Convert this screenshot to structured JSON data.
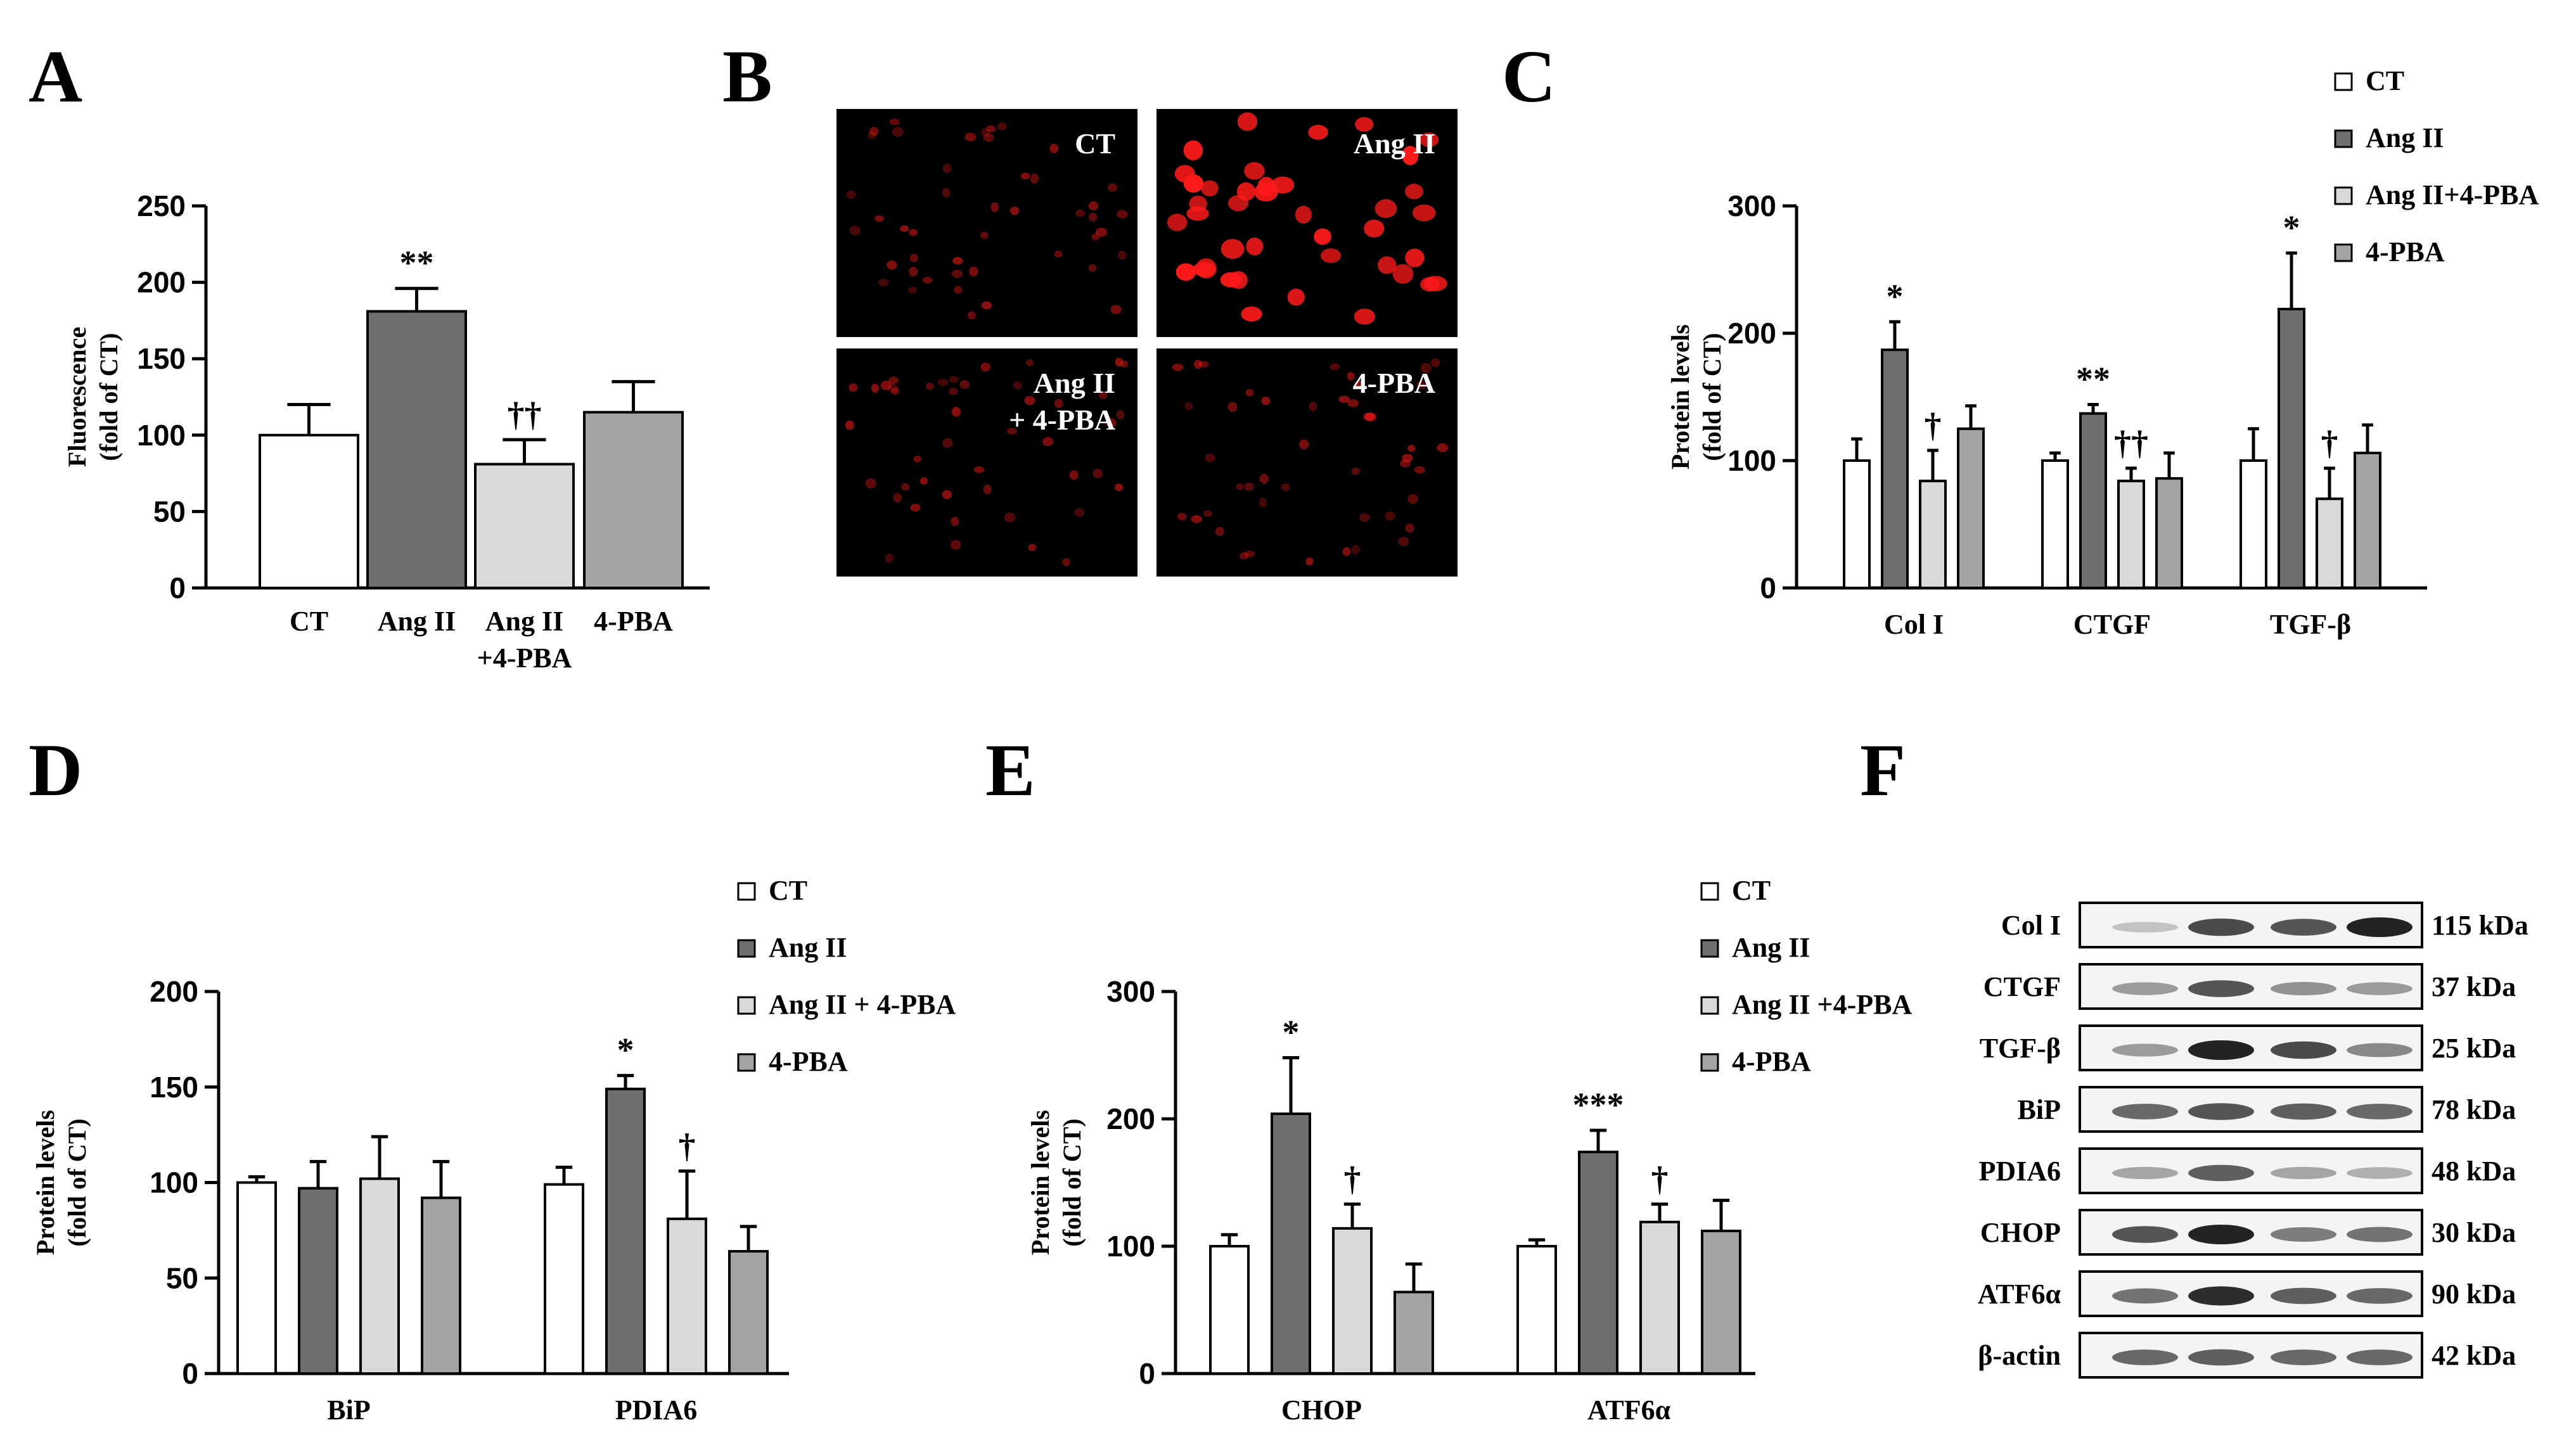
{
  "colors": {
    "ct": "#ffffff",
    "angii": "#6e6e6e",
    "angii_pba": "#d9d9d9",
    "pba": "#a3a3a3",
    "stroke": "#000000",
    "micro_bg": "#000000",
    "micro_cell": "#ff1a1a"
  },
  "panel_letters": [
    "A",
    "B",
    "C",
    "D",
    "E",
    "F"
  ],
  "chart_data": [
    {
      "id": "A",
      "type": "bar",
      "title": "",
      "ylabel": [
        "Fluorescence",
        "(fold of CT)"
      ],
      "xlabel": "",
      "ylim": [
        0,
        250
      ],
      "yticks": [
        0,
        50,
        100,
        150,
        200,
        250
      ],
      "categories": [
        [
          "CT"
        ],
        [
          "Ang II"
        ],
        [
          "Ang II",
          "+4-PBA"
        ],
        [
          "4-PBA"
        ]
      ],
      "values": [
        100,
        181,
        81,
        115
      ],
      "errors": [
        20,
        15,
        16,
        20
      ],
      "fills": [
        "ct",
        "angii",
        "angii_pba",
        "pba"
      ],
      "annotations": [
        "",
        "**",
        "††",
        ""
      ]
    },
    {
      "id": "C",
      "type": "bar",
      "ylabel": [
        "Protein levels",
        "(fold of CT)"
      ],
      "ylim": [
        0,
        300
      ],
      "yticks": [
        0,
        100,
        200,
        300
      ],
      "groups": [
        "Col I",
        "CTGF",
        "TGF-β"
      ],
      "legend": [
        "CT",
        "Ang II",
        "Ang II+4-PBA",
        "4-PBA"
      ],
      "series": [
        {
          "name": "CT",
          "values": [
            100,
            100,
            100
          ],
          "errors": [
            17,
            6,
            25
          ],
          "annotations": [
            "",
            "",
            ""
          ]
        },
        {
          "name": "Ang II",
          "values": [
            187,
            137,
            219
          ],
          "errors": [
            22,
            7,
            44
          ],
          "annotations": [
            "*",
            "**",
            "*"
          ]
        },
        {
          "name": "Ang II+4-PBA",
          "values": [
            84,
            84,
            70
          ],
          "errors": [
            24,
            10,
            24
          ],
          "annotations": [
            "†",
            "††",
            "†"
          ]
        },
        {
          "name": "4-PBA",
          "values": [
            125,
            86,
            106
          ],
          "errors": [
            18,
            20,
            22
          ],
          "annotations": [
            "",
            "",
            ""
          ]
        }
      ]
    },
    {
      "id": "D",
      "type": "bar",
      "ylabel": [
        "Protein levels",
        "(fold of CT)"
      ],
      "ylim": [
        0,
        200
      ],
      "yticks": [
        0,
        50,
        100,
        150,
        200
      ],
      "groups": [
        "BiP",
        "PDIA6"
      ],
      "legend": [
        "CT",
        "Ang II",
        "Ang II + 4-PBA",
        "4-PBA"
      ],
      "series": [
        {
          "name": "CT",
          "values": [
            100,
            99
          ],
          "errors": [
            3,
            9
          ],
          "annotations": [
            "",
            ""
          ]
        },
        {
          "name": "Ang II",
          "values": [
            97,
            149
          ],
          "errors": [
            14,
            7
          ],
          "annotations": [
            "",
            "*"
          ]
        },
        {
          "name": "Ang II + 4-PBA",
          "values": [
            102,
            81
          ],
          "errors": [
            22,
            25
          ],
          "annotations": [
            "",
            "†"
          ]
        },
        {
          "name": "4-PBA",
          "values": [
            92,
            64
          ],
          "errors": [
            19,
            13
          ],
          "annotations": [
            "",
            ""
          ]
        }
      ]
    },
    {
      "id": "E",
      "type": "bar",
      "ylabel": [
        "Protein levels",
        "(fold of CT)"
      ],
      "ylim": [
        0,
        300
      ],
      "yticks": [
        0,
        100,
        200,
        300
      ],
      "groups": [
        "CHOP",
        "ATF6α"
      ],
      "legend": [
        "CT",
        "Ang II",
        "Ang II +4-PBA",
        "4-PBA"
      ],
      "series": [
        {
          "name": "CT",
          "values": [
            100,
            100
          ],
          "errors": [
            9,
            5
          ],
          "annotations": [
            "",
            ""
          ]
        },
        {
          "name": "Ang II",
          "values": [
            204,
            174
          ],
          "errors": [
            44,
            17
          ],
          "annotations": [
            "*",
            "***"
          ]
        },
        {
          "name": "Ang II +4-PBA",
          "values": [
            114,
            119
          ],
          "errors": [
            19,
            14
          ],
          "annotations": [
            "†",
            "†"
          ]
        },
        {
          "name": "4-PBA",
          "values": [
            64,
            112
          ],
          "errors": [
            22,
            24
          ],
          "annotations": [
            "",
            ""
          ]
        }
      ]
    }
  ],
  "micrographs": [
    {
      "label": [
        "CT"
      ],
      "intensity": "low"
    },
    {
      "label": [
        "Ang II"
      ],
      "intensity": "high"
    },
    {
      "label": [
        "Ang II",
        "+ 4-PBA"
      ],
      "intensity": "low"
    },
    {
      "label": [
        "4-PBA"
      ],
      "intensity": "low"
    }
  ],
  "blot": {
    "rows": [
      {
        "label": "Col I",
        "kda": "115 kDa",
        "bands": [
          0.15,
          0.75,
          0.7,
          0.95
        ]
      },
      {
        "label": "CTGF",
        "kda": "37 kDa",
        "bands": [
          0.35,
          0.7,
          0.4,
          0.35
        ]
      },
      {
        "label": "TGF-β",
        "kda": "25 kDa",
        "bands": [
          0.35,
          0.95,
          0.75,
          0.45
        ]
      },
      {
        "label": "BiP",
        "kda": "78 kDa",
        "bands": [
          0.6,
          0.7,
          0.65,
          0.6
        ]
      },
      {
        "label": "PDIA6",
        "kda": "48 kDa",
        "bands": [
          0.3,
          0.65,
          0.3,
          0.25
        ]
      },
      {
        "label": "CHOP",
        "kda": "30 kDa",
        "bands": [
          0.7,
          0.95,
          0.5,
          0.55
        ]
      },
      {
        "label": "ATF6α",
        "kda": "90 kDa",
        "bands": [
          0.55,
          0.9,
          0.65,
          0.6
        ]
      },
      {
        "label": "β-actin",
        "kda": "42 kDa",
        "bands": [
          0.6,
          0.65,
          0.6,
          0.6
        ]
      }
    ]
  }
}
